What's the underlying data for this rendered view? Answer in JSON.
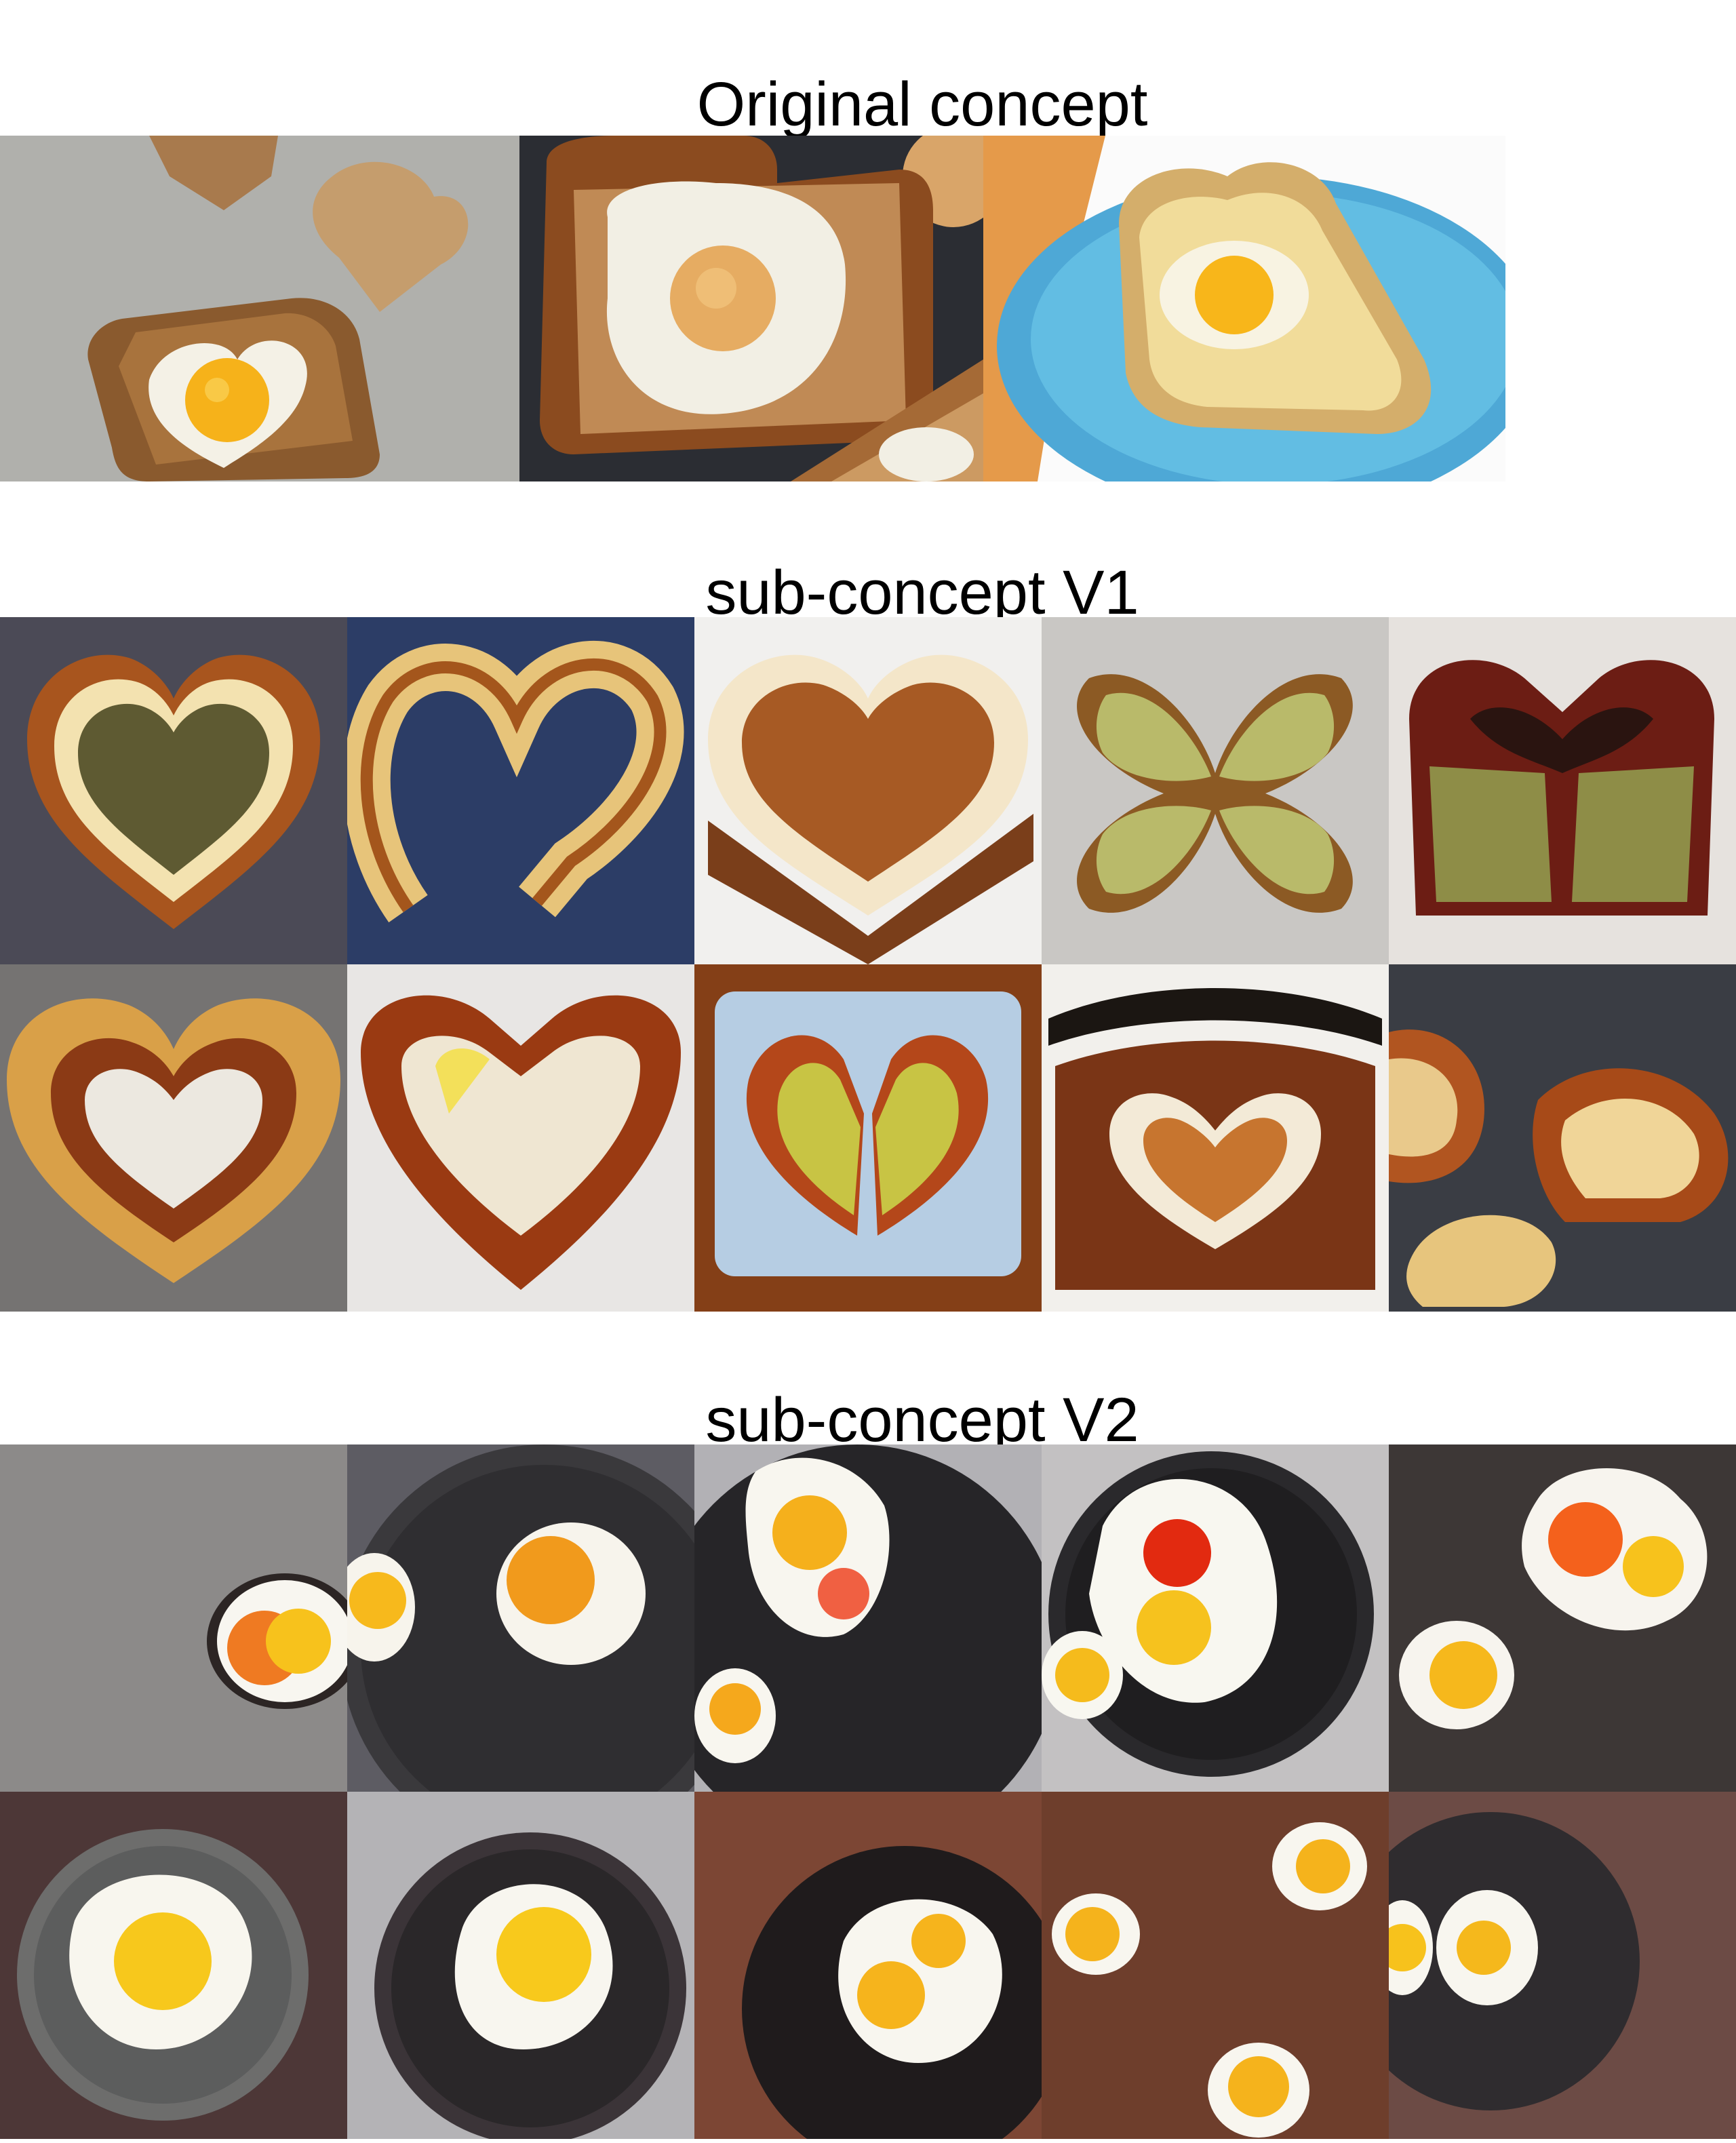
{
  "sections": [
    {
      "title": "Original concept"
    },
    {
      "title": "sub-concept V1"
    },
    {
      "title": "sub-concept V2"
    }
  ],
  "palette": {
    "toast_crust": "#8a4e22",
    "toast_crumb": "#c99b61",
    "egg_white": "#f7f4ea",
    "yolk": "#f6b81a",
    "pan": "#2f2e33",
    "plate_blue": "#56b5dc"
  }
}
